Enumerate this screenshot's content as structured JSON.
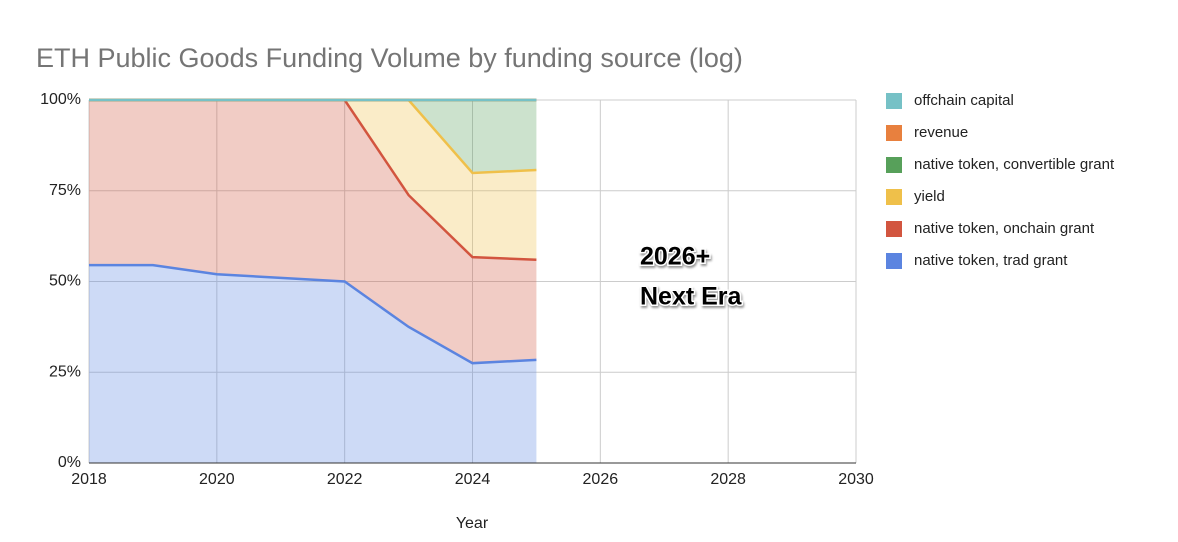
{
  "chart_data": {
    "type": "stacked_area_percent",
    "title": "ETH Public Goods Funding Volume by funding source (log)",
    "x_label": "Year",
    "x": [
      2018,
      2019,
      2020,
      2021,
      2022,
      2023,
      2024,
      2025
    ],
    "series": [
      {
        "name": "native token, trad grant",
        "color": "#5b84e0",
        "values": [
          54.5,
          54.5,
          52,
          51,
          50,
          37.5,
          27.5,
          28.4
        ]
      },
      {
        "name": "native token, onchain grant",
        "color": "#d2553f",
        "values": [
          45.5,
          45.5,
          48,
          49,
          50,
          36.3,
          29.2,
          27.6
        ]
      },
      {
        "name": "yield",
        "color": "#efc04a",
        "values": [
          0,
          0,
          0,
          0,
          0,
          26.2,
          23.2,
          24.7
        ]
      },
      {
        "name": "native token, convertible grant",
        "color": "#57a05a",
        "values": [
          0,
          0,
          0,
          0,
          0,
          0,
          20.1,
          19.3
        ]
      },
      {
        "name": "revenue",
        "color": "#e8803e",
        "values": [
          0,
          0,
          0,
          0,
          0,
          0,
          0,
          0
        ]
      },
      {
        "name": "offchain capital",
        "color": "#76c1c6",
        "values": [
          0,
          0,
          0,
          0,
          0,
          0,
          0,
          0
        ]
      }
    ],
    "xlim": [
      2018,
      2030
    ],
    "xticks": [
      2018,
      2020,
      2022,
      2024,
      2026,
      2028,
      2030
    ],
    "ylim": [
      0,
      100
    ],
    "yticks": [
      {
        "value": 0,
        "label": "0%"
      },
      {
        "value": 25,
        "label": "25%"
      },
      {
        "value": 50,
        "label": "50%"
      },
      {
        "value": 75,
        "label": "75%"
      },
      {
        "value": 100,
        "label": "100%"
      }
    ],
    "grid": true,
    "legend": "right",
    "annotation": [
      "2026+",
      "Next Era"
    ]
  }
}
